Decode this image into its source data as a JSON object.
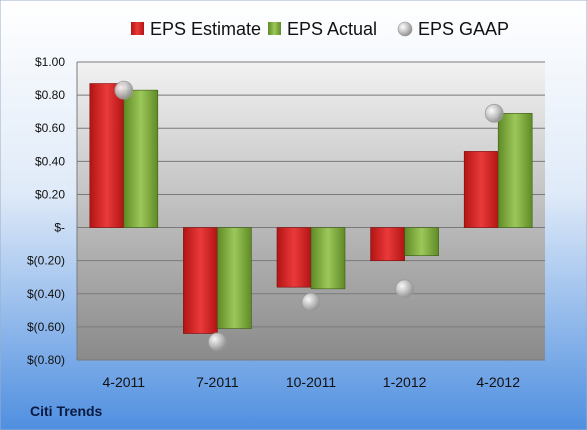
{
  "company": "Citi Trends",
  "colors": {
    "estimate": "#d42020",
    "actual": "#7fab3c",
    "gaap": "#b8b8b8",
    "accent": "#3a78d8"
  },
  "chart_data": {
    "type": "bar",
    "categories": [
      "4-2011",
      "7-2011",
      "10-2011",
      "1-2012",
      "4-2012"
    ],
    "series": [
      {
        "name": "EPS Estimate",
        "type": "bar",
        "values": [
          0.87,
          -0.64,
          -0.36,
          -0.2,
          0.46
        ]
      },
      {
        "name": "EPS Actual",
        "type": "bar",
        "values": [
          0.83,
          -0.61,
          -0.37,
          -0.17,
          0.69
        ]
      },
      {
        "name": "EPS GAAP",
        "type": "scatter",
        "values": [
          0.83,
          -0.69,
          -0.45,
          -0.37,
          0.69
        ]
      }
    ],
    "ylim": [
      -0.8,
      1.0
    ],
    "yticks": [
      1.0,
      0.8,
      0.6,
      0.4,
      0.2,
      0,
      -0.2,
      -0.4,
      -0.6,
      -0.8
    ],
    "ytick_labels": [
      "$1.00",
      "$0.80",
      "$0.60",
      "$0.40",
      "$0.20",
      "$-",
      "$(0.20)",
      "$(0.40)",
      "$(0.60)",
      "$(0.80)"
    ],
    "grid": true,
    "legend": "top"
  }
}
